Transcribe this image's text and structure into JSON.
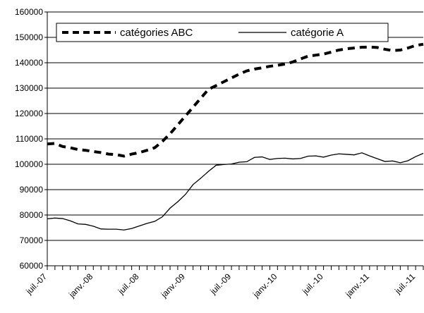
{
  "chart_data": {
    "type": "line",
    "title": "",
    "xlabel": "",
    "ylabel": "",
    "ylim": [
      60000,
      160000
    ],
    "yticks": [
      60000,
      70000,
      80000,
      90000,
      100000,
      110000,
      120000,
      130000,
      140000,
      150000,
      160000
    ],
    "xtick_labels": [
      "juil.-07",
      "janv.-08",
      "juil.-08",
      "janv.-09",
      "juil.-09",
      "janv.-10",
      "juil.-10",
      "janv.-11",
      "juil.-11"
    ],
    "x": [
      "2007-07",
      "2007-08",
      "2007-09",
      "2007-10",
      "2007-11",
      "2007-12",
      "2008-01",
      "2008-02",
      "2008-03",
      "2008-04",
      "2008-05",
      "2008-06",
      "2008-07",
      "2008-08",
      "2008-09",
      "2008-10",
      "2008-11",
      "2008-12",
      "2009-01",
      "2009-02",
      "2009-03",
      "2009-04",
      "2009-05",
      "2009-06",
      "2009-07",
      "2009-08",
      "2009-09",
      "2009-10",
      "2009-11",
      "2009-12",
      "2010-01",
      "2010-02",
      "2010-03",
      "2010-04",
      "2010-05",
      "2010-06",
      "2010-07",
      "2010-08",
      "2010-09",
      "2010-10",
      "2010-11",
      "2010-12",
      "2011-01",
      "2011-02",
      "2011-03",
      "2011-04",
      "2011-05",
      "2011-06",
      "2011-07",
      "2011-08"
    ],
    "grid": "horizontal",
    "legend_position": "top",
    "series": [
      {
        "name": "catégories ABC",
        "style": "dashed",
        "color": "#000000",
        "values": [
          108000,
          108200,
          107000,
          106500,
          105800,
          105500,
          105000,
          104600,
          104000,
          103800,
          103200,
          104000,
          104600,
          105500,
          106500,
          109000,
          112000,
          115500,
          119000,
          122500,
          126000,
          129500,
          131000,
          132500,
          134000,
          135500,
          136800,
          137500,
          138000,
          138600,
          139000,
          139500,
          140300,
          141500,
          142600,
          143000,
          143400,
          144200,
          145000,
          145500,
          145800,
          146100,
          146200,
          146000,
          145300,
          144800,
          145000,
          145800,
          146800,
          147300
        ]
      },
      {
        "name": "catégorie A",
        "style": "solid",
        "color": "#000000",
        "values": [
          78500,
          78800,
          78600,
          77700,
          76500,
          76300,
          75600,
          74500,
          74400,
          74400,
          74100,
          74700,
          75700,
          76700,
          77500,
          79300,
          82700,
          85200,
          88100,
          92000,
          94500,
          97200,
          99600,
          99900,
          100100,
          100800,
          101000,
          102700,
          102900,
          101900,
          102300,
          102400,
          102100,
          102300,
          103200,
          103300,
          102800,
          103600,
          104100,
          103900,
          103700,
          104500,
          103300,
          102200,
          101100,
          101300,
          100600,
          101400,
          103000,
          104300
        ]
      }
    ]
  }
}
